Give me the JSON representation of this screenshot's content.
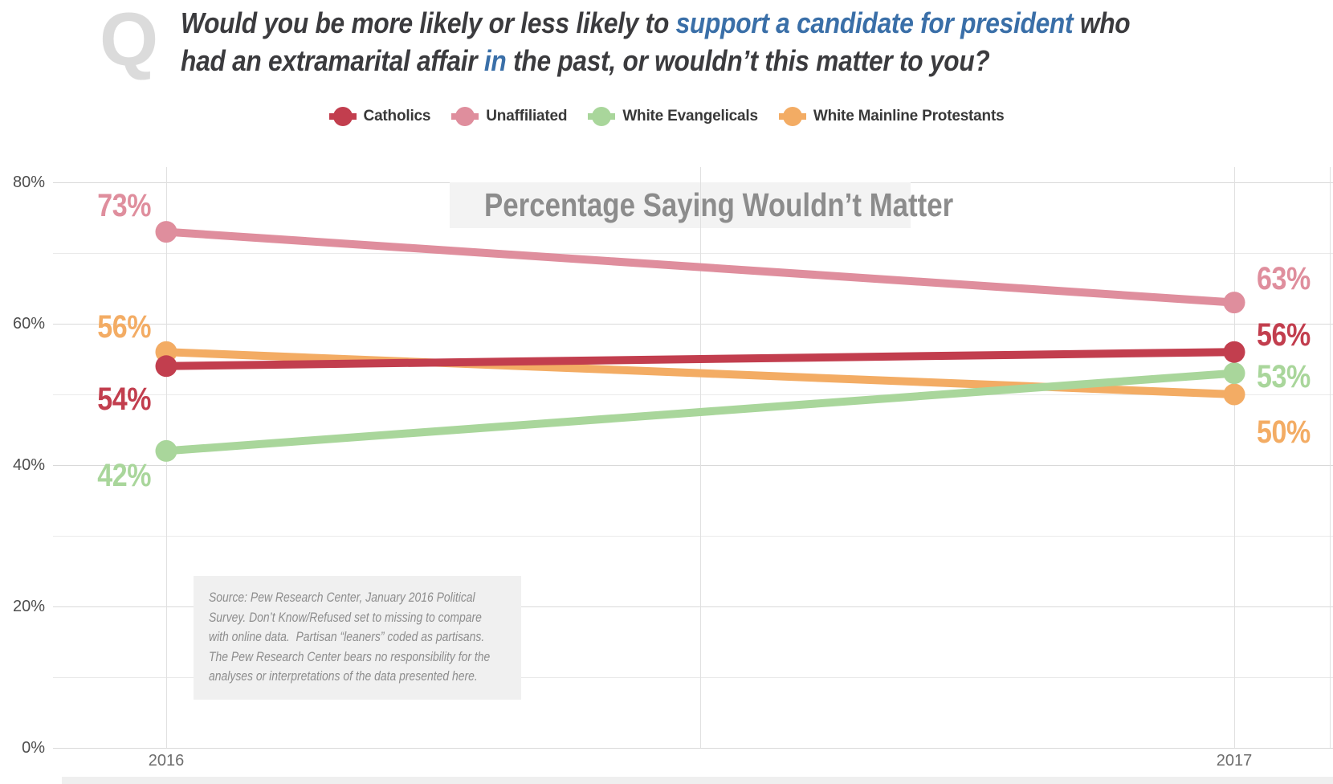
{
  "question": {
    "glyph": "Q",
    "line1": [
      {
        "text": "Would you be more likely or less likely to ",
        "style": "dark"
      },
      {
        "text": "support a candidate for president",
        "style": "blue"
      },
      {
        "text": " who",
        "style": "dark"
      }
    ],
    "line2": [
      {
        "text": "had an extramarital affair ",
        "style": "dark"
      },
      {
        "text": "in",
        "style": "blue"
      },
      {
        "text": " the past, or wouldn’t this matter to you?",
        "style": "dark"
      }
    ]
  },
  "colors": {
    "accent_blue": "#3a6fa8",
    "question_dark": "#3b3b3e",
    "q_glyph_gray": "#dbdbdb",
    "chart_title_gray": "#8c8c8c",
    "grid_major": "#d9d9d9",
    "grid_minor": "#eaeaea"
  },
  "chart_data": {
    "type": "line",
    "title": "Percentage Saying Wouldn’t Matter",
    "x": [
      "2016",
      "2017"
    ],
    "series": [
      {
        "name": "Catholics",
        "color": "#c23e4e",
        "values": [
          54,
          56
        ]
      },
      {
        "name": "Unaffiliated",
        "color": "#df8e9d",
        "values": [
          73,
          63
        ]
      },
      {
        "name": "White Evangelicals",
        "color": "#a9d69b",
        "values": [
          42,
          53
        ]
      },
      {
        "name": "White Mainline Protestants",
        "color": "#f3ac64",
        "values": [
          56,
          50
        ]
      }
    ],
    "point_labels": {
      "Catholics": [
        "54%",
        "56%"
      ],
      "Unaffiliated": [
        "73%",
        "63%"
      ],
      "White Evangelicals": [
        "42%",
        "53%"
      ],
      "White Mainline Protestants": [
        "56%",
        "50%"
      ]
    },
    "ylim": [
      0,
      80
    ],
    "ytick_labels": [
      "0%",
      "20%",
      "40%",
      "60%",
      "80%"
    ],
    "gridline_step_pct": 10,
    "grid": true,
    "legend_position": "top-center"
  },
  "source_note": "Source: Pew Research Center, January 2016 Political Survey. Don’t Know/Refused set to missing to compare with online data.  Partisan “leaners” coded as partisans. The Pew Research Center bears no responsibility for the analyses or interpretations of the data presented here."
}
